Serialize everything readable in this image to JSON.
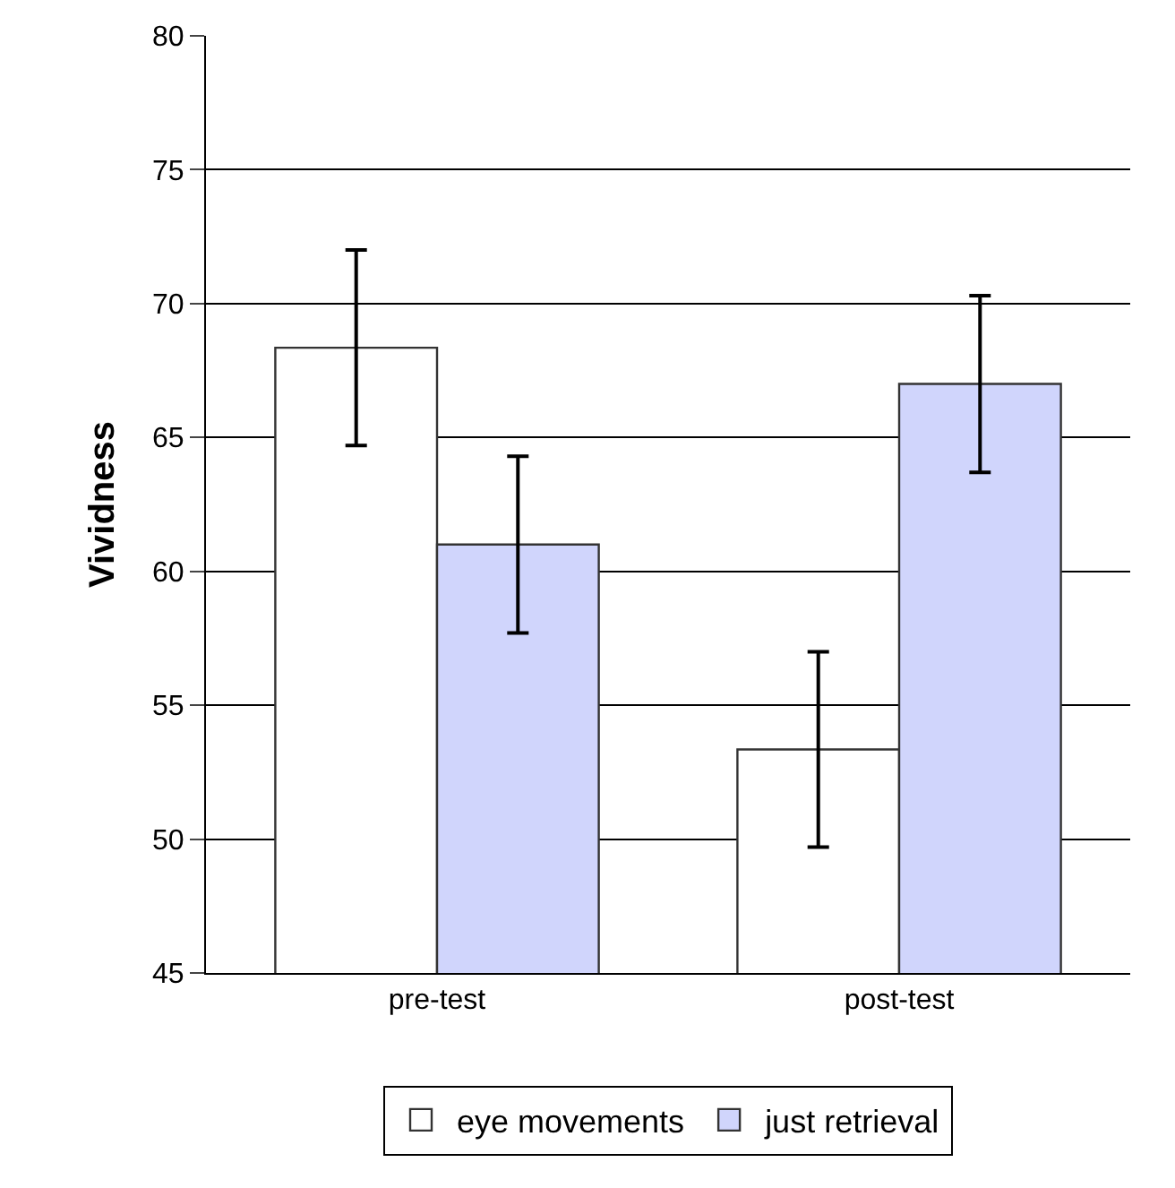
{
  "chart_data": {
    "type": "bar",
    "ylabel": "Vividness",
    "categories": [
      "pre-test",
      "post-test"
    ],
    "series": [
      {
        "name": "eye movements",
        "color": "#ffffff",
        "values": [
          68.35,
          53.35
        ],
        "errors": [
          3.65,
          3.65
        ]
      },
      {
        "name": "just retrieval",
        "color": "#d0d5fc",
        "values": [
          61.0,
          67.0
        ],
        "errors": [
          3.3,
          3.3
        ]
      }
    ],
    "ylim": [
      45,
      80
    ],
    "yticks": [
      45,
      50,
      55,
      60,
      65,
      70,
      75,
      80
    ],
    "grid": "y",
    "legend": "bottom"
  }
}
